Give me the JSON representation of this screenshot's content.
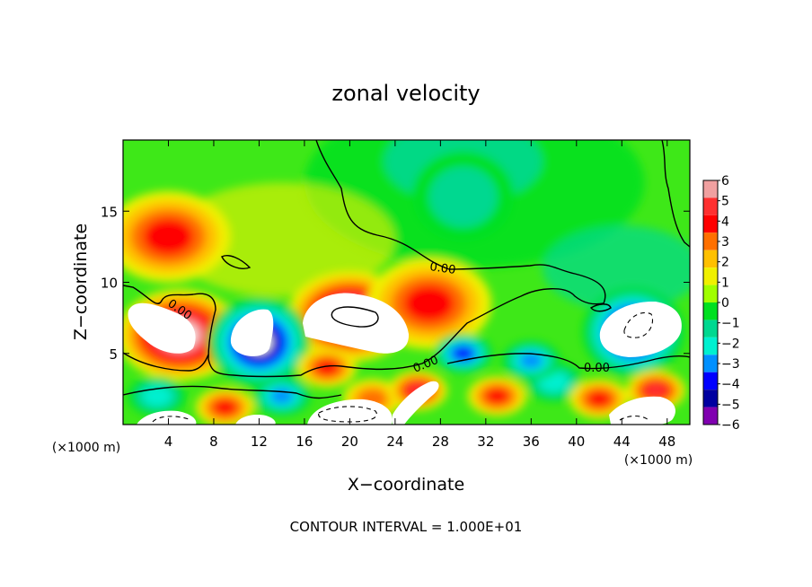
{
  "chart_data": {
    "type": "heatmap",
    "title": "zonal velocity",
    "xlabel": "X−coordinate",
    "ylabel": "Z−coordinate",
    "x_unit": "(×1000 m)",
    "z_unit": "(×1000 m)",
    "footer": "CONTOUR INTERVAL = 1.000E+01",
    "contour_label": "0.00",
    "xlim": [
      0,
      50
    ],
    "ylim": [
      0,
      20
    ],
    "x_ticks": [
      "4",
      "8",
      "12",
      "16",
      "20",
      "24",
      "28",
      "32",
      "36",
      "40",
      "44",
      "48"
    ],
    "x_tick_values": [
      4,
      8,
      12,
      16,
      20,
      24,
      28,
      32,
      36,
      40,
      44,
      48
    ],
    "y_ticks": [
      "5",
      "10",
      "15"
    ],
    "y_tick_values": [
      5,
      10,
      15
    ],
    "colorbar": {
      "levels": [
        "6",
        "5",
        "4",
        "3",
        "2",
        "1",
        "0",
        "−1",
        "−2",
        "−3",
        "−4",
        "−5",
        "−6"
      ],
      "level_values": [
        6,
        5,
        4,
        3,
        2,
        1,
        0,
        -1,
        -2,
        -3,
        -4,
        -5,
        -6
      ],
      "colors": [
        "#f0a0a0",
        "#ff3030",
        "#ff0000",
        "#ff7000",
        "#ffc000",
        "#f0f000",
        "#a0ff00",
        "#00e020",
        "#00d890",
        "#00f0d0",
        "#0090ff",
        "#0000ff",
        "#0000a0",
        "#8000b0"
      ],
      "overflow_color": "#ffffff"
    },
    "field_features": [
      {
        "x": 20,
        "z": 7.6,
        "sign": "positive",
        "peak": 7
      },
      {
        "x": 5,
        "z": 6.3,
        "sign": "positive",
        "peak": 6.5
      },
      {
        "x": 4,
        "z": 13.2,
        "sign": "positive",
        "peak": 3.5
      },
      {
        "x": 27,
        "z": 8.5,
        "sign": "positive",
        "peak": 4
      },
      {
        "x": 12,
        "z": 5.8,
        "sign": "negative",
        "peak": -6.5
      },
      {
        "x": 45,
        "z": 6.5,
        "sign": "negative",
        "peak": -6.5
      },
      {
        "x": 30,
        "z": 16,
        "sign": "negative",
        "peak": -2
      }
    ]
  }
}
